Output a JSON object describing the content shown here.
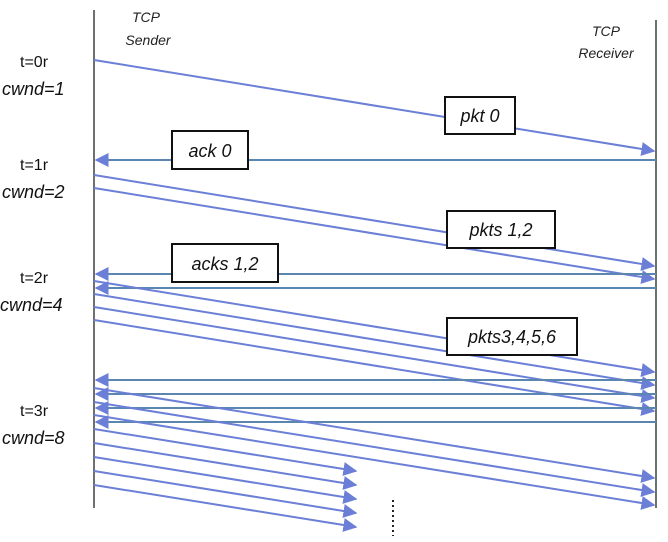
{
  "nodes": {
    "sender": [
      "TCP",
      "Sender"
    ],
    "receiver": [
      "TCP",
      "Receiver"
    ]
  },
  "rounds": [
    {
      "time": "t=0r",
      "cwnd": "cwnd=1"
    },
    {
      "time": "t=1r",
      "cwnd": "cwnd=2"
    },
    {
      "time": "t=2r",
      "cwnd": "cwnd=4"
    },
    {
      "time": "t=3r",
      "cwnd": "cwnd=8"
    }
  ],
  "boxes": {
    "pkt0": "pkt 0",
    "ack0": "ack 0",
    "pkts12": "pkts 1,2",
    "acks12": "acks 1,2",
    "pkts3456": "pkts3,4,5,6"
  },
  "colors": {
    "arrow": "#6b7fd7",
    "ack": "#5b86b0",
    "text": "#111111"
  }
}
